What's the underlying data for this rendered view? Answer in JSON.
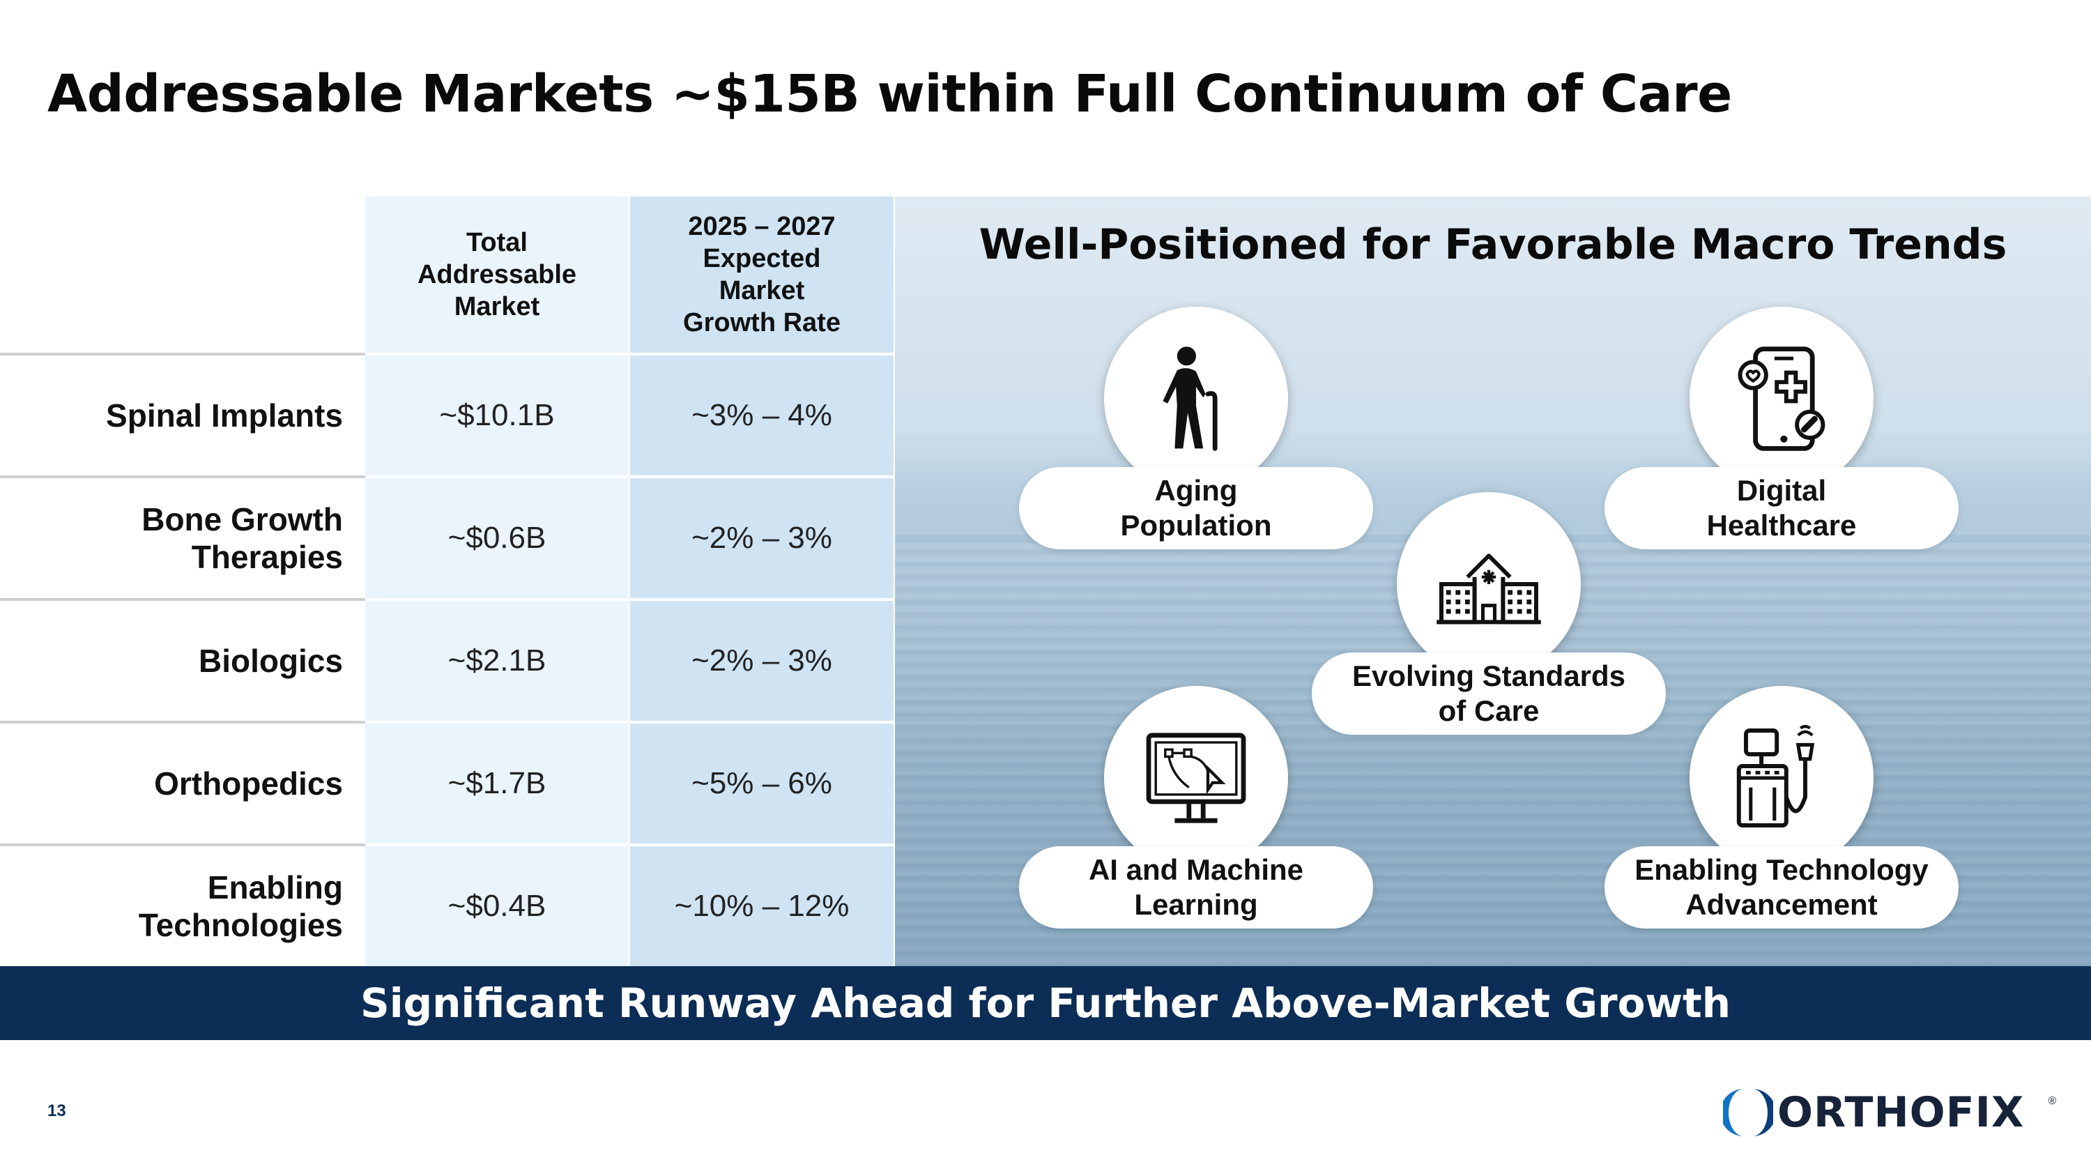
{
  "slide": {
    "title": "Addressable Markets ~$15B within Full Continuum of Care",
    "page_number": "13"
  },
  "table": {
    "headers": {
      "tam": "Total\nAddressable\nMarket",
      "growth": "2025 – 2027\nExpected\nMarket\nGrowth Rate"
    },
    "rows": [
      {
        "label": "Spinal Implants",
        "tam": "~$10.1B",
        "growth": "~3% – 4%"
      },
      {
        "label": "Bone Growth\nTherapies",
        "tam": "~$0.6B",
        "growth": "~2% – 3%"
      },
      {
        "label": "Biologics",
        "tam": "~$2.1B",
        "growth": "~2% – 3%"
      },
      {
        "label": "Orthopedics",
        "tam": "~$1.7B",
        "growth": "~5% – 6%"
      },
      {
        "label": "Enabling\nTechnologies",
        "tam": "~$0.4B",
        "growth": "~10% – 12%"
      }
    ]
  },
  "trends": {
    "title": "Well-Positioned for Favorable Macro Trends",
    "items": [
      {
        "label": "Aging\nPopulation",
        "icon": "elderly-person-icon"
      },
      {
        "label": "Digital\nHealthcare",
        "icon": "mobile-health-icon"
      },
      {
        "label": "Evolving Standards\nof Care",
        "icon": "hospital-icon"
      },
      {
        "label": "AI and Machine\nLearning",
        "icon": "computer-monitor-icon"
      },
      {
        "label": "Enabling Technology\nAdvancement",
        "icon": "medical-device-icon"
      }
    ]
  },
  "banner": {
    "text": "Significant Runway Ahead for Further Above-Market Growth"
  },
  "logo": {
    "text": "ORTHOFIX",
    "registered": "®"
  },
  "colors": {
    "navy": "#0c2d55",
    "col_light": "#eaf4fd",
    "col_mid": "#cfe3f3"
  }
}
